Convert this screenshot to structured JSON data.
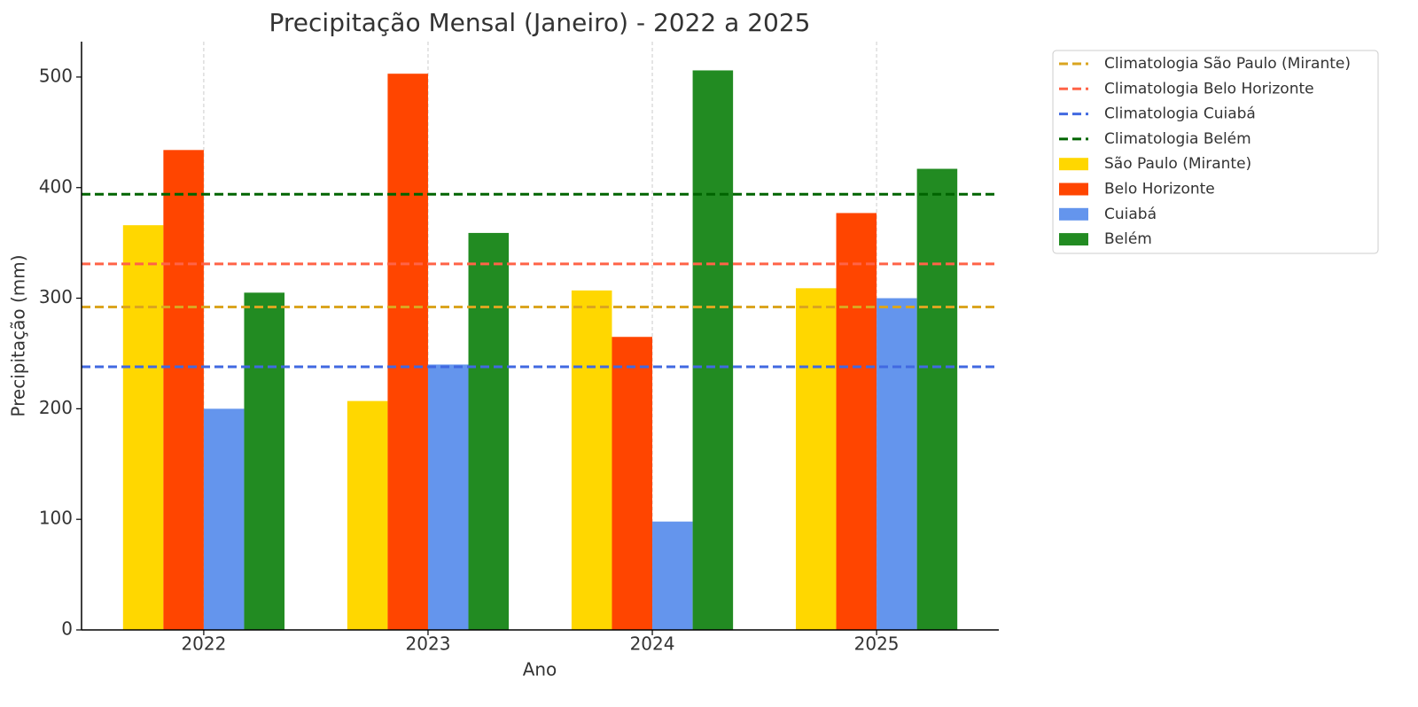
{
  "chart_data": {
    "type": "bar",
    "title": "Precipitação Mensal (Janeiro) - 2022 a 2025",
    "x_label": "Ano",
    "y_label": "Precipitação (mm)",
    "categories": [
      "2022",
      "2023",
      "2024",
      "2025"
    ],
    "series": [
      {
        "name": "São Paulo (Mirante)",
        "color": "#ffd700",
        "values": [
          366,
          207,
          307,
          309
        ]
      },
      {
        "name": "Belo Horizonte",
        "color": "#ff4500",
        "values": [
          434,
          503,
          265,
          377
        ]
      },
      {
        "name": "Cuiabá",
        "color": "#6495ed",
        "values": [
          200,
          240,
          98,
          300
        ]
      },
      {
        "name": "Belém",
        "color": "#228b22",
        "values": [
          305,
          359,
          506,
          417
        ]
      }
    ],
    "reference_lines": [
      {
        "name": "Climatologia São Paulo (Mirante)",
        "color": "#daa520",
        "value": 292
      },
      {
        "name": "Climatologia Belo Horizonte",
        "color": "#ff6347",
        "value": 331
      },
      {
        "name": "Climatologia Cuiabá",
        "color": "#4169e1",
        "value": 238
      },
      {
        "name": "Climatologia Belém",
        "color": "#006400",
        "value": 394
      }
    ],
    "ylim": [
      0,
      532
    ],
    "yticks": [
      0,
      100,
      200,
      300,
      400,
      500
    ],
    "grid": "x",
    "legend": "outside upper right"
  }
}
